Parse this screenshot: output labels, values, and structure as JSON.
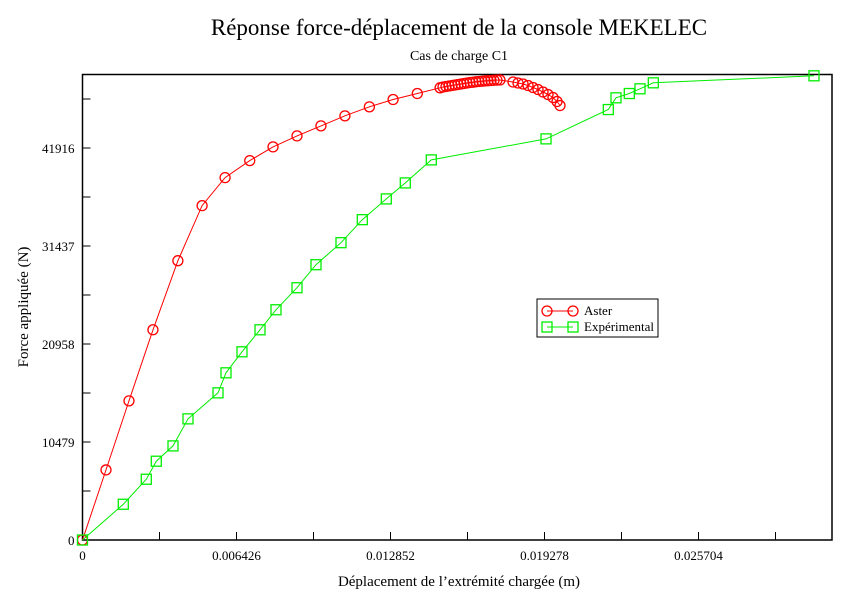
{
  "chart_data": {
    "type": "line",
    "title": "Réponse force-déplacement de la console MEKELEC",
    "subtitle": "Cas de charge C1",
    "xlabel": "Déplacement de l’extrémité chargée (m)",
    "ylabel": "Force appliquée (N)",
    "xlim": [
      0,
      0.031274
    ],
    "ylim": [
      0,
      49774
    ],
    "xticks": [
      0,
      0.006426,
      0.012852,
      0.019278,
      0.025704
    ],
    "xtick_labels": [
      "0",
      "0.006426",
      "0.012852",
      "0.019278",
      "0.025704"
    ],
    "yticks": [
      0,
      10479,
      20958,
      31437,
      41916
    ],
    "ytick_labels": [
      "0",
      "10479",
      "20958",
      "31437",
      "41916"
    ],
    "grid": false,
    "legend_position": "center-right",
    "series": [
      {
        "name": "Aster",
        "color": "#ff0000",
        "marker": "circle",
        "x": [
          0,
          0.000981,
          0.00194,
          0.00294,
          0.00398,
          0.00499,
          0.00595,
          0.00698,
          0.00795,
          0.00895,
          0.00995,
          0.01095,
          0.01197,
          0.01296,
          0.01397,
          0.01492,
          0.015043,
          0.015168,
          0.015293,
          0.015418,
          0.015543,
          0.015669,
          0.015794,
          0.015919,
          0.016044,
          0.016169,
          0.016294,
          0.016419,
          0.016544,
          0.01667,
          0.016795,
          0.01692,
          0.017045,
          0.01717,
          0.017295,
          0.01742,
          0.017964,
          0.018172,
          0.018381,
          0.01859,
          0.018798,
          0.019007,
          0.019216,
          0.019424,
          0.019633,
          0.0198,
          0.019925
        ],
        "y": [
          0,
          7493,
          14879,
          22478,
          29864,
          35751,
          38748,
          40568,
          42035,
          43212,
          44283,
          45353,
          46316,
          47098,
          47740,
          48350,
          48436,
          48489,
          48543,
          48596,
          48650,
          48703,
          48757,
          48810,
          48864,
          48917,
          48949,
          48992,
          49024,
          49056,
          49088,
          49110,
          49131,
          49152,
          49174,
          49184,
          48971,
          48864,
          48757,
          48596,
          48382,
          48168,
          47900,
          47633,
          47312,
          46884,
          46455
        ]
      },
      {
        "name": "Expérimental",
        "color": "#00ee00",
        "marker": "square",
        "x": [
          0,
          0.001702,
          0.002662,
          0.003079,
          0.003776,
          0.004402,
          0.005654,
          0.005988,
          0.006655,
          0.007407,
          0.008074,
          0.00895,
          0.009743,
          0.010786,
          0.011675,
          0.012677,
          0.013469,
          0.014554,
          0.019341,
          0.02194,
          0.022261,
          0.022816,
          0.023263,
          0.023818,
          0.030523
        ],
        "y": [
          0,
          3821,
          6497,
          8424,
          10062,
          12952,
          15735,
          17876,
          20124,
          22478,
          24619,
          26974,
          29436,
          31791,
          34253,
          36469,
          38181,
          40643,
          42891,
          46027,
          47280,
          47740,
          48243,
          48885,
          49634
        ]
      }
    ]
  }
}
